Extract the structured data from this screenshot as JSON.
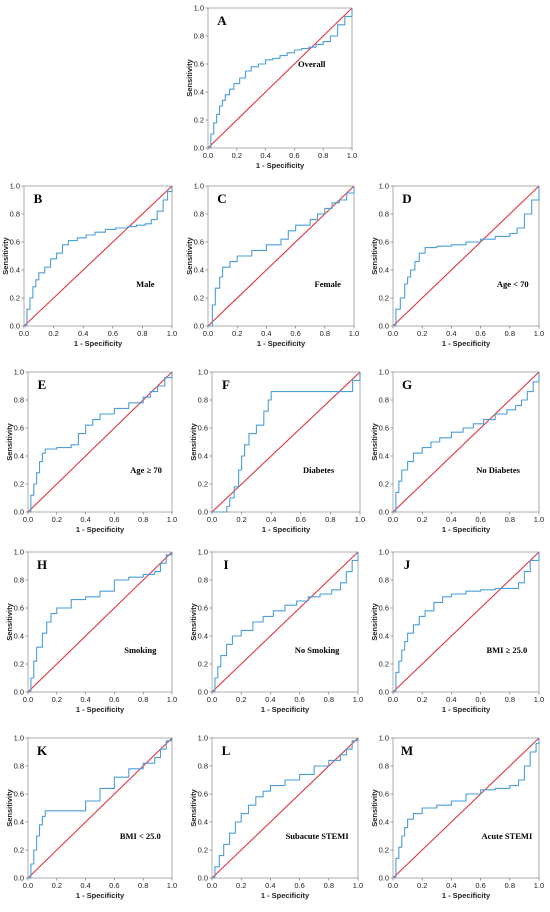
{
  "colors": {
    "roc": "#4a9fd8",
    "reference": "#e0353f",
    "frame": "#999999",
    "grid": "#cccccc"
  },
  "chart_data": [
    {
      "type": "line",
      "panel": "A",
      "subgroup": "Overall",
      "xlabel": "1 - Specificity",
      "ylabel": "Sensitivity",
      "xlim": [
        0,
        1
      ],
      "ylim": [
        0,
        1
      ],
      "ticks": [
        "0.0",
        "0.2",
        "0.4",
        "0.6",
        "0.8",
        "1.0"
      ],
      "series": [
        {
          "x": [
            0,
            0.02,
            0.04,
            0.06,
            0.08,
            0.1,
            0.12,
            0.15,
            0.18,
            0.22,
            0.26,
            0.3,
            0.35,
            0.4,
            0.45,
            0.5,
            0.55,
            0.6,
            0.65,
            0.7,
            0.75,
            0.8,
            0.85,
            0.9,
            0.95,
            1.0
          ],
          "y": [
            0,
            0.1,
            0.18,
            0.24,
            0.3,
            0.34,
            0.38,
            0.42,
            0.46,
            0.5,
            0.55,
            0.58,
            0.6,
            0.63,
            0.64,
            0.66,
            0.68,
            0.7,
            0.71,
            0.72,
            0.74,
            0.76,
            0.8,
            0.88,
            0.94,
            1.0
          ]
        },
        {
          "x": [
            0,
            1
          ],
          "y": [
            0,
            1
          ]
        }
      ]
    },
    {
      "type": "line",
      "panel": "B",
      "subgroup": "Male",
      "xlabel": "1 - Specificity",
      "ylabel": "Sensitivity",
      "xlim": [
        0,
        1
      ],
      "ylim": [
        0,
        1
      ],
      "ticks": [
        "0.0",
        "0.2",
        "0.4",
        "0.6",
        "0.8",
        "1.0"
      ],
      "series": [
        {
          "x": [
            0,
            0.02,
            0.04,
            0.06,
            0.08,
            0.1,
            0.14,
            0.18,
            0.22,
            0.26,
            0.3,
            0.36,
            0.42,
            0.48,
            0.55,
            0.62,
            0.7,
            0.76,
            0.82,
            0.86,
            0.9,
            0.94,
            0.97,
            1.0
          ],
          "y": [
            0,
            0.12,
            0.2,
            0.28,
            0.33,
            0.38,
            0.42,
            0.48,
            0.52,
            0.58,
            0.61,
            0.63,
            0.65,
            0.67,
            0.69,
            0.7,
            0.71,
            0.72,
            0.73,
            0.76,
            0.82,
            0.9,
            0.96,
            1.0
          ]
        },
        {
          "x": [
            0,
            1
          ],
          "y": [
            0,
            1
          ]
        }
      ]
    },
    {
      "type": "line",
      "panel": "C",
      "subgroup": "Female",
      "xlabel": "1 - Specificity",
      "ylabel": "Sensitivity",
      "xlim": [
        0,
        1
      ],
      "ylim": [
        0,
        1
      ],
      "ticks": [
        "0.0",
        "0.2",
        "0.4",
        "0.6",
        "0.8",
        "1.0"
      ],
      "series": [
        {
          "x": [
            0,
            0.03,
            0.05,
            0.08,
            0.1,
            0.15,
            0.2,
            0.3,
            0.4,
            0.5,
            0.55,
            0.6,
            0.7,
            0.75,
            0.8,
            0.85,
            0.9,
            0.95,
            1.0
          ],
          "y": [
            0,
            0.15,
            0.27,
            0.35,
            0.42,
            0.46,
            0.5,
            0.54,
            0.58,
            0.62,
            0.68,
            0.72,
            0.76,
            0.8,
            0.84,
            0.88,
            0.9,
            0.95,
            1.0
          ]
        },
        {
          "x": [
            0,
            1
          ],
          "y": [
            0,
            1
          ]
        }
      ]
    },
    {
      "type": "line",
      "panel": "D",
      "subgroup": "Age < 70",
      "xlabel": "1 - Specificity",
      "ylabel": "Sensitivity",
      "xlim": [
        0,
        1
      ],
      "ylim": [
        0,
        1
      ],
      "ticks": [
        "0.0",
        "0.2",
        "0.4",
        "0.6",
        "0.8",
        "1.0"
      ],
      "series": [
        {
          "x": [
            0,
            0.02,
            0.05,
            0.08,
            0.1,
            0.12,
            0.15,
            0.18,
            0.22,
            0.3,
            0.4,
            0.5,
            0.6,
            0.7,
            0.8,
            0.85,
            0.9,
            0.95,
            1.0
          ],
          "y": [
            0,
            0.12,
            0.2,
            0.3,
            0.35,
            0.4,
            0.46,
            0.52,
            0.56,
            0.57,
            0.58,
            0.6,
            0.62,
            0.64,
            0.66,
            0.7,
            0.8,
            0.9,
            1.0
          ]
        },
        {
          "x": [
            0,
            1
          ],
          "y": [
            0,
            1
          ]
        }
      ]
    },
    {
      "type": "line",
      "panel": "E",
      "subgroup": "Age ≥ 70",
      "xlabel": "1 - Specificity",
      "ylabel": "Sensitivity",
      "xlim": [
        0,
        1
      ],
      "ylim": [
        0,
        1
      ],
      "ticks": [
        "0.0",
        "0.2",
        "0.4",
        "0.6",
        "0.8",
        "1.0"
      ],
      "series": [
        {
          "x": [
            0,
            0.02,
            0.04,
            0.06,
            0.08,
            0.1,
            0.12,
            0.2,
            0.3,
            0.35,
            0.4,
            0.45,
            0.5,
            0.6,
            0.7,
            0.8,
            0.85,
            0.9,
            0.95,
            1.0
          ],
          "y": [
            0,
            0.12,
            0.2,
            0.28,
            0.36,
            0.42,
            0.45,
            0.46,
            0.48,
            0.56,
            0.62,
            0.66,
            0.7,
            0.74,
            0.78,
            0.82,
            0.86,
            0.9,
            0.96,
            1.0
          ]
        },
        {
          "x": [
            0,
            1
          ],
          "y": [
            0,
            1
          ]
        }
      ]
    },
    {
      "type": "line",
      "panel": "F",
      "subgroup": "Diabetes",
      "xlabel": "1 - Specificity",
      "ylabel": "Sensitivity",
      "xlim": [
        0,
        1
      ],
      "ylim": [
        0,
        1
      ],
      "ticks": [
        "0.0",
        "0.2",
        "0.4",
        "0.6",
        "0.8",
        "1.0"
      ],
      "series": [
        {
          "x": [
            0,
            0.1,
            0.12,
            0.15,
            0.18,
            0.2,
            0.22,
            0.25,
            0.3,
            0.35,
            0.38,
            0.4,
            0.5,
            0.6,
            0.7,
            0.8,
            0.9,
            0.95,
            1.0
          ],
          "y": [
            0,
            0.04,
            0.1,
            0.18,
            0.3,
            0.4,
            0.48,
            0.56,
            0.62,
            0.72,
            0.8,
            0.86,
            0.86,
            0.86,
            0.86,
            0.86,
            0.86,
            0.94,
            1.0
          ]
        },
        {
          "x": [
            0,
            1
          ],
          "y": [
            0,
            1
          ]
        }
      ]
    },
    {
      "type": "line",
      "panel": "G",
      "subgroup": "No Diabetes",
      "xlabel": "1 - Specificity",
      "ylabel": "Sensitivity",
      "xlim": [
        0,
        1
      ],
      "ylim": [
        0,
        1
      ],
      "ticks": [
        "0.0",
        "0.2",
        "0.4",
        "0.6",
        "0.8",
        "1.0"
      ],
      "series": [
        {
          "x": [
            0,
            0.02,
            0.04,
            0.06,
            0.1,
            0.14,
            0.2,
            0.26,
            0.32,
            0.4,
            0.48,
            0.55,
            0.62,
            0.7,
            0.78,
            0.84,
            0.88,
            0.92,
            0.96,
            1.0
          ],
          "y": [
            0,
            0.14,
            0.22,
            0.3,
            0.36,
            0.42,
            0.46,
            0.5,
            0.53,
            0.57,
            0.6,
            0.63,
            0.66,
            0.7,
            0.73,
            0.76,
            0.8,
            0.86,
            0.93,
            1.0
          ]
        },
        {
          "x": [
            0,
            1
          ],
          "y": [
            0,
            1
          ]
        }
      ]
    },
    {
      "type": "line",
      "panel": "H",
      "subgroup": "Smoking",
      "xlabel": "1 - Specificity",
      "ylabel": "Sensitivity",
      "xlim": [
        0,
        1
      ],
      "ylim": [
        0,
        1
      ],
      "ticks": [
        "0.0",
        "0.2",
        "0.4",
        "0.6",
        "0.8",
        "1.0"
      ],
      "series": [
        {
          "x": [
            0,
            0.02,
            0.04,
            0.06,
            0.1,
            0.13,
            0.16,
            0.2,
            0.3,
            0.4,
            0.5,
            0.6,
            0.7,
            0.8,
            0.88,
            0.92,
            0.96,
            1.0
          ],
          "y": [
            0,
            0.1,
            0.22,
            0.32,
            0.42,
            0.5,
            0.56,
            0.6,
            0.66,
            0.68,
            0.72,
            0.8,
            0.82,
            0.84,
            0.86,
            0.92,
            0.98,
            1.0
          ]
        },
        {
          "x": [
            0,
            1
          ],
          "y": [
            0,
            1
          ]
        }
      ]
    },
    {
      "type": "line",
      "panel": "I",
      "subgroup": "No Smoking",
      "xlabel": "1 - Specificity",
      "ylabel": "Sensitivity",
      "xlim": [
        0,
        1
      ],
      "ylim": [
        0,
        1
      ],
      "ticks": [
        "0.0",
        "0.2",
        "0.4",
        "0.6",
        "0.8",
        "1.0"
      ],
      "series": [
        {
          "x": [
            0,
            0.02,
            0.04,
            0.06,
            0.1,
            0.14,
            0.2,
            0.28,
            0.35,
            0.42,
            0.5,
            0.58,
            0.66,
            0.74,
            0.82,
            0.88,
            0.92,
            0.96,
            1.0
          ],
          "y": [
            0,
            0.1,
            0.18,
            0.26,
            0.34,
            0.4,
            0.44,
            0.5,
            0.54,
            0.58,
            0.62,
            0.65,
            0.68,
            0.7,
            0.73,
            0.78,
            0.86,
            0.94,
            1.0
          ]
        },
        {
          "x": [
            0,
            1
          ],
          "y": [
            0,
            1
          ]
        }
      ]
    },
    {
      "type": "line",
      "panel": "J",
      "subgroup": "BMI ≥ 25.0",
      "xlabel": "1 - Specificity",
      "ylabel": "Sensitivity",
      "xlim": [
        0,
        1
      ],
      "ylim": [
        0,
        1
      ],
      "ticks": [
        "0.0",
        "0.2",
        "0.4",
        "0.6",
        "0.8",
        "1.0"
      ],
      "series": [
        {
          "x": [
            0,
            0.02,
            0.04,
            0.06,
            0.08,
            0.1,
            0.14,
            0.18,
            0.22,
            0.28,
            0.34,
            0.4,
            0.5,
            0.6,
            0.7,
            0.8,
            0.86,
            0.9,
            0.94,
            1.0
          ],
          "y": [
            0,
            0.14,
            0.22,
            0.3,
            0.36,
            0.42,
            0.48,
            0.54,
            0.58,
            0.64,
            0.68,
            0.7,
            0.72,
            0.73,
            0.74,
            0.74,
            0.78,
            0.86,
            0.94,
            1.0
          ]
        },
        {
          "x": [
            0,
            1
          ],
          "y": [
            0,
            1
          ]
        }
      ]
    },
    {
      "type": "line",
      "panel": "K",
      "subgroup": "BMI < 25.0",
      "xlabel": "1 - Specificity",
      "ylabel": "Sensitivity",
      "xlim": [
        0,
        1
      ],
      "ylim": [
        0,
        1
      ],
      "ticks": [
        "0.0",
        "0.2",
        "0.4",
        "0.6",
        "0.8",
        "1.0"
      ],
      "series": [
        {
          "x": [
            0,
            0.02,
            0.04,
            0.06,
            0.08,
            0.1,
            0.12,
            0.2,
            0.3,
            0.4,
            0.5,
            0.6,
            0.7,
            0.8,
            0.88,
            0.92,
            0.96,
            1.0
          ],
          "y": [
            0,
            0.1,
            0.2,
            0.3,
            0.38,
            0.44,
            0.48,
            0.48,
            0.48,
            0.55,
            0.64,
            0.72,
            0.78,
            0.82,
            0.86,
            0.92,
            0.98,
            1.0
          ]
        },
        {
          "x": [
            0,
            1
          ],
          "y": [
            0,
            1
          ]
        }
      ]
    },
    {
      "type": "line",
      "panel": "L",
      "subgroup": "Subacute STEMI",
      "xlabel": "1 - Specificity",
      "ylabel": "Sensitivity",
      "xlim": [
        0,
        1
      ],
      "ylim": [
        0,
        1
      ],
      "ticks": [
        "0.0",
        "0.2",
        "0.4",
        "0.6",
        "0.8",
        "1.0"
      ],
      "series": [
        {
          "x": [
            0,
            0.02,
            0.05,
            0.08,
            0.12,
            0.16,
            0.2,
            0.25,
            0.3,
            0.35,
            0.4,
            0.5,
            0.6,
            0.7,
            0.8,
            0.88,
            0.92,
            0.96,
            1.0
          ],
          "y": [
            0,
            0.08,
            0.16,
            0.24,
            0.32,
            0.4,
            0.46,
            0.52,
            0.58,
            0.62,
            0.66,
            0.7,
            0.74,
            0.8,
            0.84,
            0.88,
            0.92,
            0.98,
            1.0
          ]
        },
        {
          "x": [
            0,
            1
          ],
          "y": [
            0,
            1
          ]
        }
      ]
    },
    {
      "type": "line",
      "panel": "M",
      "subgroup": "Acute STEMI",
      "xlabel": "1 - Specificity",
      "ylabel": "Sensitivity",
      "xlim": [
        0,
        1
      ],
      "ylim": [
        0,
        1
      ],
      "ticks": [
        "0.0",
        "0.2",
        "0.4",
        "0.6",
        "0.8",
        "1.0"
      ],
      "series": [
        {
          "x": [
            0,
            0.02,
            0.04,
            0.06,
            0.08,
            0.1,
            0.14,
            0.2,
            0.3,
            0.4,
            0.5,
            0.6,
            0.7,
            0.8,
            0.86,
            0.9,
            0.94,
            0.98,
            1.0
          ],
          "y": [
            0,
            0.14,
            0.22,
            0.3,
            0.36,
            0.42,
            0.46,
            0.5,
            0.52,
            0.55,
            0.6,
            0.63,
            0.64,
            0.66,
            0.7,
            0.8,
            0.9,
            0.96,
            1.0
          ]
        },
        {
          "x": [
            0,
            1
          ],
          "y": [
            0,
            1
          ]
        }
      ]
    }
  ]
}
